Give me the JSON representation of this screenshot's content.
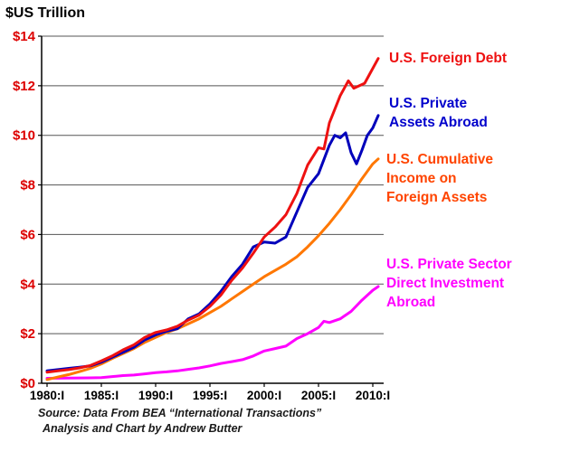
{
  "title": "$US Trillion",
  "source": {
    "line1": "Source: Data From BEA “International Transactions”",
    "line2": "Analysis and Chart by Andrew Butter"
  },
  "chart_data": {
    "type": "line",
    "title": "$US Trillion",
    "xlabel": "",
    "ylabel": "$US Trillion",
    "xlim": [
      1979.5,
      2011
    ],
    "ylim": [
      0,
      14
    ],
    "grid": "horizontal",
    "legend_position": "right",
    "x_ticks": [
      {
        "value": 1980,
        "label": "1980:I"
      },
      {
        "value": 1985,
        "label": "1985:I"
      },
      {
        "value": 1990,
        "label": "1990:I"
      },
      {
        "value": 1995,
        "label": "1995:I"
      },
      {
        "value": 2000,
        "label": "2000:I"
      },
      {
        "value": 2005,
        "label": "2005:I"
      },
      {
        "value": 2010,
        "label": "2010:I"
      }
    ],
    "y_ticks": [
      {
        "value": 0,
        "label": "$0"
      },
      {
        "value": 2,
        "label": "$2"
      },
      {
        "value": 4,
        "label": "$4"
      },
      {
        "value": 6,
        "label": "$6"
      },
      {
        "value": 8,
        "label": "$8"
      },
      {
        "value": 10,
        "label": "$10"
      },
      {
        "value": 12,
        "label": "$12"
      },
      {
        "value": 14,
        "label": "$14"
      }
    ],
    "axis_colors": {
      "y_tick_labels": "#dd0000",
      "x_tick_labels": "#000000",
      "axis_line": "#000000",
      "gridline": "#555555"
    },
    "series": [
      {
        "name": "U.S. Foreign Debt",
        "legend_label": "U.S. Foreign Debt",
        "color": "#ee1111",
        "label_color": "#ee1111",
        "points": [
          [
            1980,
            0.45
          ],
          [
            1981,
            0.5
          ],
          [
            1982,
            0.55
          ],
          [
            1983,
            0.62
          ],
          [
            1984,
            0.72
          ],
          [
            1985,
            0.9
          ],
          [
            1986,
            1.1
          ],
          [
            1987,
            1.35
          ],
          [
            1988,
            1.55
          ],
          [
            1989,
            1.85
          ],
          [
            1990,
            2.05
          ],
          [
            1991,
            2.15
          ],
          [
            1992,
            2.3
          ],
          [
            1993,
            2.55
          ],
          [
            1994,
            2.75
          ],
          [
            1995,
            3.1
          ],
          [
            1996,
            3.55
          ],
          [
            1997,
            4.15
          ],
          [
            1998,
            4.65
          ],
          [
            1999,
            5.25
          ],
          [
            2000,
            5.9
          ],
          [
            2001,
            6.3
          ],
          [
            2002,
            6.8
          ],
          [
            2003,
            7.65
          ],
          [
            2004,
            8.8
          ],
          [
            2005,
            9.5
          ],
          [
            2005.5,
            9.45
          ],
          [
            2006,
            10.5
          ],
          [
            2007,
            11.6
          ],
          [
            2007.75,
            12.2
          ],
          [
            2008.25,
            11.9
          ],
          [
            2008.75,
            12.0
          ],
          [
            2009.25,
            12.1
          ],
          [
            2009.75,
            12.5
          ],
          [
            2010.5,
            13.1
          ]
        ]
      },
      {
        "name": "U.S. Private Assets Abroad",
        "legend_label": "U.S. Private\nAssets Abroad",
        "color": "#0000bb",
        "label_color": "#0000cc",
        "points": [
          [
            1980,
            0.5
          ],
          [
            1981,
            0.55
          ],
          [
            1982,
            0.6
          ],
          [
            1983,
            0.65
          ],
          [
            1984,
            0.7
          ],
          [
            1985,
            0.85
          ],
          [
            1986,
            1.05
          ],
          [
            1987,
            1.25
          ],
          [
            1988,
            1.45
          ],
          [
            1989,
            1.75
          ],
          [
            1990,
            1.95
          ],
          [
            1991,
            2.1
          ],
          [
            1992,
            2.2
          ],
          [
            1993,
            2.6
          ],
          [
            1994,
            2.8
          ],
          [
            1995,
            3.2
          ],
          [
            1996,
            3.7
          ],
          [
            1997,
            4.3
          ],
          [
            1998,
            4.8
          ],
          [
            1999,
            5.5
          ],
          [
            2000,
            5.7
          ],
          [
            2001,
            5.65
          ],
          [
            2002,
            5.9
          ],
          [
            2003,
            6.9
          ],
          [
            2004,
            7.9
          ],
          [
            2005,
            8.45
          ],
          [
            2006,
            9.6
          ],
          [
            2006.5,
            10.0
          ],
          [
            2007,
            9.9
          ],
          [
            2007.5,
            10.1
          ],
          [
            2008,
            9.3
          ],
          [
            2008.5,
            8.85
          ],
          [
            2009,
            9.4
          ],
          [
            2009.5,
            10.0
          ],
          [
            2010,
            10.3
          ],
          [
            2010.5,
            10.8
          ]
        ]
      },
      {
        "name": "U.S. Cumulative Income on Foreign Assets",
        "legend_label": "U.S. Cumulative\nIncome on\nForeign Assets",
        "color": "#ff7700",
        "label_color": "#ff4400",
        "points": [
          [
            1980,
            0.15
          ],
          [
            1981,
            0.25
          ],
          [
            1982,
            0.35
          ],
          [
            1983,
            0.47
          ],
          [
            1984,
            0.6
          ],
          [
            1985,
            0.78
          ],
          [
            1986,
            1.0
          ],
          [
            1987,
            1.2
          ],
          [
            1988,
            1.4
          ],
          [
            1989,
            1.65
          ],
          [
            1990,
            1.85
          ],
          [
            1991,
            2.05
          ],
          [
            1992,
            2.2
          ],
          [
            1993,
            2.4
          ],
          [
            1994,
            2.6
          ],
          [
            1995,
            2.85
          ],
          [
            1996,
            3.1
          ],
          [
            1997,
            3.4
          ],
          [
            1998,
            3.7
          ],
          [
            1999,
            4.0
          ],
          [
            2000,
            4.3
          ],
          [
            2001,
            4.55
          ],
          [
            2002,
            4.8
          ],
          [
            2003,
            5.1
          ],
          [
            2004,
            5.5
          ],
          [
            2005,
            5.95
          ],
          [
            2006,
            6.45
          ],
          [
            2007,
            7.0
          ],
          [
            2008,
            7.6
          ],
          [
            2009,
            8.25
          ],
          [
            2010,
            8.85
          ],
          [
            2010.5,
            9.05
          ]
        ]
      },
      {
        "name": "U.S. Private Sector Direct Investment Abroad",
        "legend_label": "U.S. Private Sector\nDirect Investment\nAbroad",
        "color": "#ff00ff",
        "label_color": "#ff00ff",
        "points": [
          [
            1980,
            0.2
          ],
          [
            1982,
            0.21
          ],
          [
            1984,
            0.22
          ],
          [
            1985,
            0.23
          ],
          [
            1986,
            0.27
          ],
          [
            1987,
            0.31
          ],
          [
            1988,
            0.33
          ],
          [
            1989,
            0.38
          ],
          [
            1990,
            0.43
          ],
          [
            1991,
            0.46
          ],
          [
            1992,
            0.5
          ],
          [
            1993,
            0.56
          ],
          [
            1994,
            0.62
          ],
          [
            1995,
            0.7
          ],
          [
            1996,
            0.8
          ],
          [
            1997,
            0.87
          ],
          [
            1998,
            0.95
          ],
          [
            1999,
            1.1
          ],
          [
            2000,
            1.3
          ],
          [
            2001,
            1.4
          ],
          [
            2002,
            1.5
          ],
          [
            2003,
            1.8
          ],
          [
            2004,
            2.0
          ],
          [
            2005,
            2.25
          ],
          [
            2005.5,
            2.5
          ],
          [
            2006,
            2.45
          ],
          [
            2007,
            2.6
          ],
          [
            2008,
            2.9
          ],
          [
            2009,
            3.35
          ],
          [
            2010,
            3.75
          ],
          [
            2010.5,
            3.9
          ]
        ]
      }
    ]
  }
}
